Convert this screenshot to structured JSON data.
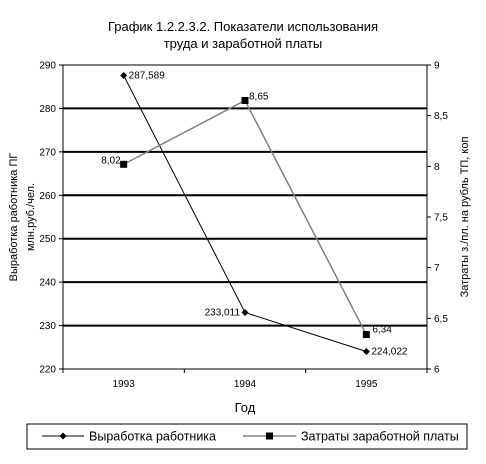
{
  "chart_data": {
    "type": "line",
    "title_line1": "График 1.2.2.3.2.  Показатели использования",
    "title_line2": "труда и заработной платы",
    "xlabel": "Год",
    "ylabel_left_line1": "Выработка работника ПГ",
    "ylabel_left_line2": "млн.руб./чел.",
    "ylabel_right": "Затраты з./пл. на рубль ТП, коп",
    "categories": [
      "1993",
      "1994",
      "1995"
    ],
    "left_axis": {
      "min": 220,
      "max": 290,
      "ticks": [
        "220",
        "230",
        "240",
        "250",
        "260",
        "270",
        "280",
        "290"
      ]
    },
    "right_axis": {
      "min": 6,
      "max": 9,
      "ticks": [
        "6",
        "6,5",
        "7",
        "7,5",
        "8",
        "8,5",
        "9"
      ]
    },
    "grid": true,
    "legend_placement": "bottom",
    "series": [
      {
        "name": "Выработка работника",
        "axis": "left",
        "values": [
          287.589,
          233.011,
          224.022
        ],
        "labels": [
          "287,589",
          "233,011",
          "224,022"
        ],
        "color": "#000000",
        "marker": "diamond"
      },
      {
        "name": "Затраты заработной платы",
        "axis": "right",
        "values": [
          8.02,
          8.65,
          6.34
        ],
        "labels": [
          "8,02",
          "8,65",
          "6,34"
        ],
        "color": "#808080",
        "marker": "square"
      }
    ]
  }
}
